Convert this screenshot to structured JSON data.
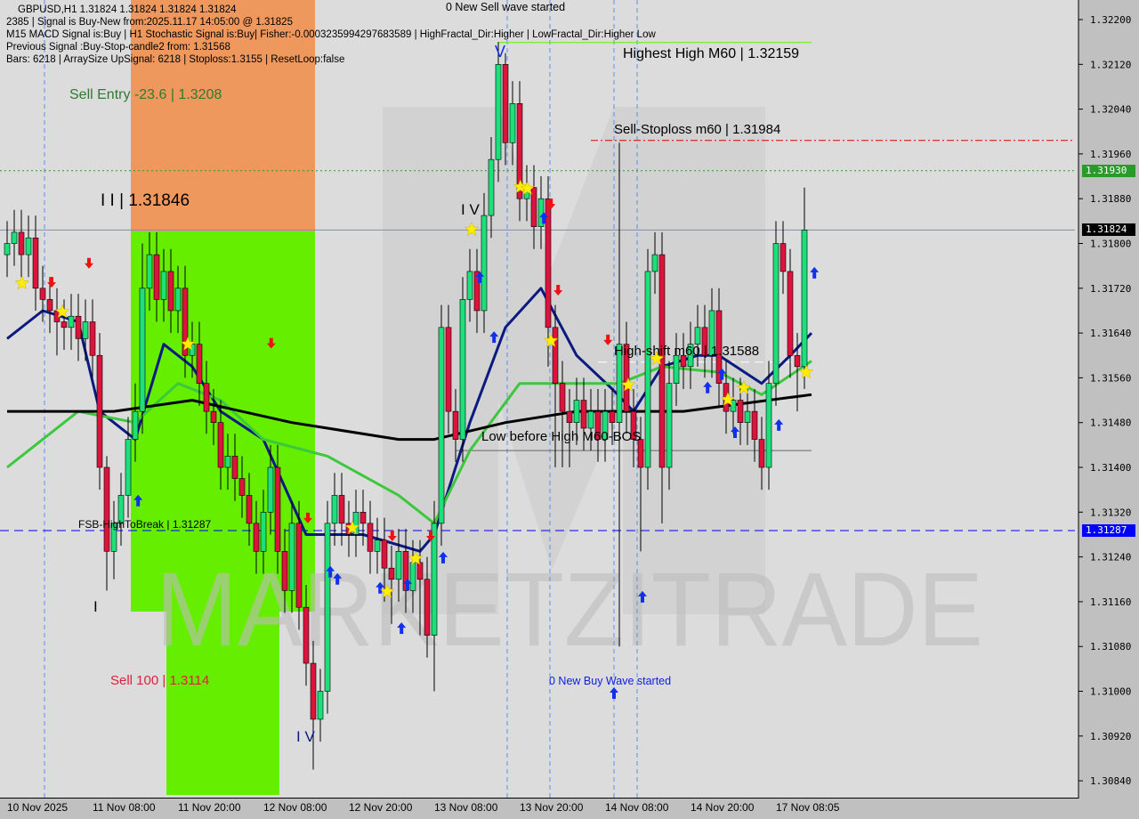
{
  "header": {
    "line1": "GBPUSD,H1  1.31824 1.31824 1.31824 1.31824",
    "line2": "2385 | Signal is Buy-New from:2025.11.17 14:05:00 @ 1.31825",
    "line3": "M15 MACD Signal is:Buy | H1 Stochastic Signal is:Buy| Fisher:-0.0003235994297683589 | HighFractal_Dir:Higher | LowFractal_Dir:Higher Low",
    "line4": "Previous Signal :Buy-Stop-candle2 from: 1.31568",
    "line5": "Bars: 6218 | ArraySize UpSignal: 6218 | Stoploss:1.3155 | ResetLoop:false"
  },
  "annotations": {
    "sell_entry": "Sell Entry -23.6 | 1.3208",
    "ii_level": "I I | 1.31846",
    "wave_iv_top": "I V",
    "wave_v": "V",
    "wave_iv_bottom": "I V",
    "wave_i": "I",
    "new_sell_wave": "0 New Sell wave started",
    "highest_high": "Highest High  M60 | 1.32159",
    "sell_stoploss": "Sell-Stoploss m60 | 1.31984",
    "high_shift": "High-shift m60 | 1.31588",
    "low_before_high": "Low before High  M60-BOS",
    "fsb_high": "FSB-HighToBreak | 1.31287",
    "sell_100": "Sell 100 | 1.3114",
    "new_buy_wave": "0 New Buy Wave started"
  },
  "watermark": "MARKETZITRADE",
  "price_tags": {
    "green_level": "1.31930",
    "current": "1.31824",
    "blue_level": "1.31287"
  },
  "colors": {
    "bull": "#1ee07a",
    "bear": "#dc143c",
    "ma_fast": "#0a1a80",
    "ma_mid": "#3cc83c",
    "ma_slow": "#000000",
    "sell_zone": "#f09050",
    "buy_zone": "#66ee00",
    "green_tag": "#2a9a2a",
    "blue_tag": "#0000ff",
    "current_tag": "#000000"
  },
  "chart_data": {
    "type": "candlestick",
    "symbol": "GBPUSD,H1",
    "ylim": [
      1.308,
      1.3224
    ],
    "y_ticks": [
      "1.32200",
      "1.32120",
      "1.32040",
      "1.31960",
      "1.31880",
      "1.31800",
      "1.31720",
      "1.31640",
      "1.31560",
      "1.31480",
      "1.31400",
      "1.31320",
      "1.31240",
      "1.31160",
      "1.31080",
      "1.31000",
      "1.30920",
      "1.30840"
    ],
    "x_ticks": [
      {
        "bar": 4,
        "label": "10 Nov 2025"
      },
      {
        "bar": 16,
        "label": "11 Nov 08:00"
      },
      {
        "bar": 28,
        "label": "11 Nov 20:00"
      },
      {
        "bar": 40,
        "label": "12 Nov 08:00"
      },
      {
        "bar": 52,
        "label": "12 Nov 20:00"
      },
      {
        "bar": 64,
        "label": "13 Nov 08:00"
      },
      {
        "bar": 76,
        "label": "13 Nov 20:00"
      },
      {
        "bar": 88,
        "label": "14 Nov 08:00"
      },
      {
        "bar": 100,
        "label": "14 Nov 20:00"
      },
      {
        "bar": 112,
        "label": "17 Nov 08:05"
      }
    ],
    "candles_ohlc": [
      [
        1.3178,
        1.3184,
        1.3174,
        1.318
      ],
      [
        1.318,
        1.3186,
        1.3176,
        1.3182
      ],
      [
        1.3182,
        1.3186,
        1.3174,
        1.3178
      ],
      [
        1.3178,
        1.3185,
        1.3174,
        1.3181
      ],
      [
        1.3181,
        1.3185,
        1.3168,
        1.3172
      ],
      [
        1.3172,
        1.3176,
        1.3166,
        1.317
      ],
      [
        1.317,
        1.3174,
        1.3164,
        1.3168
      ],
      [
        1.3168,
        1.3172,
        1.316,
        1.3166
      ],
      [
        1.3166,
        1.317,
        1.3161,
        1.3165
      ],
      [
        1.3165,
        1.3171,
        1.3161,
        1.3167
      ],
      [
        1.3167,
        1.3171,
        1.3159,
        1.3163
      ],
      [
        1.3163,
        1.317,
        1.3159,
        1.3166
      ],
      [
        1.3166,
        1.317,
        1.3156,
        1.316
      ],
      [
        1.316,
        1.3164,
        1.3136,
        1.314
      ],
      [
        1.314,
        1.3142,
        1.3118,
        1.3125
      ],
      [
        1.3125,
        1.3134,
        1.312,
        1.313
      ],
      [
        1.313,
        1.3139,
        1.3126,
        1.3135
      ],
      [
        1.3135,
        1.3149,
        1.3131,
        1.3145
      ],
      [
        1.3145,
        1.3155,
        1.3141,
        1.315
      ],
      [
        1.315,
        1.318,
        1.3146,
        1.3172
      ],
      [
        1.3172,
        1.3182,
        1.3168,
        1.3178
      ],
      [
        1.3178,
        1.3182,
        1.3166,
        1.317
      ],
      [
        1.317,
        1.3179,
        1.3166,
        1.3175
      ],
      [
        1.3175,
        1.3179,
        1.3164,
        1.3168
      ],
      [
        1.3168,
        1.3176,
        1.3164,
        1.3172
      ],
      [
        1.3172,
        1.3176,
        1.3156,
        1.316
      ],
      [
        1.316,
        1.3166,
        1.3156,
        1.3162
      ],
      [
        1.3162,
        1.3166,
        1.3151,
        1.3155
      ],
      [
        1.3155,
        1.3159,
        1.3146,
        1.315
      ],
      [
        1.315,
        1.3154,
        1.3144,
        1.3148
      ],
      [
        1.3148,
        1.3152,
        1.3136,
        1.314
      ],
      [
        1.314,
        1.3146,
        1.3136,
        1.3142
      ],
      [
        1.3142,
        1.3146,
        1.3134,
        1.3138
      ],
      [
        1.3138,
        1.3142,
        1.3131,
        1.3135
      ],
      [
        1.3135,
        1.3139,
        1.3126,
        1.313
      ],
      [
        1.313,
        1.3134,
        1.3121,
        1.3125
      ],
      [
        1.3125,
        1.3136,
        1.3121,
        1.3132
      ],
      [
        1.3132,
        1.3144,
        1.3128,
        1.314
      ],
      [
        1.314,
        1.3144,
        1.3121,
        1.3125
      ],
      [
        1.3125,
        1.3129,
        1.3114,
        1.3118
      ],
      [
        1.3118,
        1.3134,
        1.3114,
        1.313
      ],
      [
        1.313,
        1.3134,
        1.3111,
        1.3115
      ],
      [
        1.3115,
        1.3119,
        1.3101,
        1.3105
      ],
      [
        1.3105,
        1.3109,
        1.3086,
        1.3095
      ],
      [
        1.3095,
        1.3104,
        1.3091,
        1.31
      ],
      [
        1.31,
        1.3134,
        1.3096,
        1.313
      ],
      [
        1.313,
        1.3139,
        1.3126,
        1.3135
      ],
      [
        1.3135,
        1.3139,
        1.3126,
        1.313
      ],
      [
        1.313,
        1.3134,
        1.3124,
        1.3128
      ],
      [
        1.3128,
        1.3136,
        1.3124,
        1.3132
      ],
      [
        1.3132,
        1.3136,
        1.3126,
        1.313
      ],
      [
        1.313,
        1.3134,
        1.3121,
        1.3125
      ],
      [
        1.3125,
        1.3131,
        1.3121,
        1.3127
      ],
      [
        1.3127,
        1.3131,
        1.3116,
        1.3122
      ],
      [
        1.3122,
        1.3126,
        1.3112,
        1.312
      ],
      [
        1.312,
        1.3129,
        1.3116,
        1.3125
      ],
      [
        1.3125,
        1.3129,
        1.3114,
        1.3118
      ],
      [
        1.3118,
        1.3127,
        1.3114,
        1.3123
      ],
      [
        1.3123,
        1.3127,
        1.311,
        1.312
      ],
      [
        1.312,
        1.3124,
        1.3106,
        1.311
      ],
      [
        1.311,
        1.3134,
        1.31,
        1.313
      ],
      [
        1.313,
        1.3169,
        1.3126,
        1.3165
      ],
      [
        1.3165,
        1.3169,
        1.3146,
        1.315
      ],
      [
        1.315,
        1.3154,
        1.3141,
        1.3145
      ],
      [
        1.3145,
        1.3174,
        1.3141,
        1.317
      ],
      [
        1.317,
        1.3179,
        1.3166,
        1.3175
      ],
      [
        1.3175,
        1.3179,
        1.3164,
        1.3168
      ],
      [
        1.3168,
        1.3189,
        1.3164,
        1.3185
      ],
      [
        1.3185,
        1.3199,
        1.3181,
        1.3195
      ],
      [
        1.3195,
        1.3216,
        1.3191,
        1.3212
      ],
      [
        1.3212,
        1.3214,
        1.3194,
        1.3198
      ],
      [
        1.3198,
        1.3209,
        1.3194,
        1.3205
      ],
      [
        1.3205,
        1.3209,
        1.3184,
        1.3188
      ],
      [
        1.3188,
        1.3194,
        1.3184,
        1.319
      ],
      [
        1.319,
        1.3194,
        1.3179,
        1.3183
      ],
      [
        1.3183,
        1.3192,
        1.3179,
        1.3188
      ],
      [
        1.3188,
        1.3192,
        1.3158,
        1.3165
      ],
      [
        1.3165,
        1.3169,
        1.314,
        1.3155
      ],
      [
        1.3155,
        1.3159,
        1.314,
        1.315
      ],
      [
        1.315,
        1.3154,
        1.314,
        1.3148
      ],
      [
        1.3148,
        1.3156,
        1.3144,
        1.3152
      ],
      [
        1.3152,
        1.3156,
        1.3143,
        1.3147
      ],
      [
        1.3147,
        1.3154,
        1.3143,
        1.315
      ],
      [
        1.315,
        1.3154,
        1.3141,
        1.3145
      ],
      [
        1.3145,
        1.3154,
        1.3141,
        1.315
      ],
      [
        1.315,
        1.3154,
        1.3144,
        1.3148
      ],
      [
        1.3148,
        1.3198,
        1.3108,
        1.3162
      ],
      [
        1.3162,
        1.3166,
        1.3146,
        1.315
      ],
      [
        1.315,
        1.3154,
        1.314,
        1.3145
      ],
      [
        1.3145,
        1.3149,
        1.3125,
        1.314
      ],
      [
        1.314,
        1.3179,
        1.3136,
        1.3175
      ],
      [
        1.3175,
        1.3182,
        1.3171,
        1.3178
      ],
      [
        1.3178,
        1.3182,
        1.313,
        1.314
      ],
      [
        1.314,
        1.3159,
        1.3136,
        1.3155
      ],
      [
        1.3155,
        1.3164,
        1.3151,
        1.316
      ],
      [
        1.316,
        1.3164,
        1.3154,
        1.3158
      ],
      [
        1.3158,
        1.3166,
        1.3154,
        1.3162
      ],
      [
        1.3162,
        1.3169,
        1.3158,
        1.3165
      ],
      [
        1.3165,
        1.3169,
        1.3156,
        1.316
      ],
      [
        1.316,
        1.3172,
        1.3156,
        1.3168
      ],
      [
        1.3168,
        1.3172,
        1.3151,
        1.3155
      ],
      [
        1.3155,
        1.3159,
        1.3146,
        1.315
      ],
      [
        1.315,
        1.3156,
        1.3146,
        1.3152
      ],
      [
        1.3152,
        1.3156,
        1.3144,
        1.3148
      ],
      [
        1.3148,
        1.3154,
        1.3144,
        1.315
      ],
      [
        1.315,
        1.3154,
        1.3141,
        1.3145
      ],
      [
        1.3145,
        1.3149,
        1.3136,
        1.314
      ],
      [
        1.314,
        1.3159,
        1.3136,
        1.3155
      ],
      [
        1.3155,
        1.3184,
        1.3151,
        1.318
      ],
      [
        1.318,
        1.3184,
        1.3171,
        1.3175
      ],
      [
        1.3175,
        1.3179,
        1.3156,
        1.316
      ],
      [
        1.316,
        1.3164,
        1.315,
        1.3158
      ],
      [
        1.3158,
        1.319,
        1.3154,
        1.31824
      ]
    ],
    "moving_averages": [
      {
        "color_key": "ma_fast",
        "points": [
          [
            0,
            1.3163
          ],
          [
            5,
            1.3168
          ],
          [
            10,
            1.3166
          ],
          [
            13,
            1.315
          ],
          [
            18,
            1.3145
          ],
          [
            22,
            1.3162
          ],
          [
            26,
            1.3158
          ],
          [
            30,
            1.315
          ],
          [
            36,
            1.3145
          ],
          [
            42,
            1.3128
          ],
          [
            50,
            1.3128
          ],
          [
            58,
            1.3125
          ],
          [
            60,
            1.3128
          ],
          [
            65,
            1.3148
          ],
          [
            70,
            1.3165
          ],
          [
            75,
            1.3172
          ],
          [
            80,
            1.316
          ],
          [
            85,
            1.3154
          ],
          [
            88,
            1.315
          ],
          [
            92,
            1.3158
          ],
          [
            97,
            1.316
          ],
          [
            100,
            1.316
          ],
          [
            106,
            1.3155
          ],
          [
            110,
            1.316
          ],
          [
            113,
            1.3164
          ]
        ]
      },
      {
        "color_key": "ma_mid",
        "points": [
          [
            0,
            1.314
          ],
          [
            10,
            1.315
          ],
          [
            18,
            1.3148
          ],
          [
            24,
            1.3155
          ],
          [
            30,
            1.3152
          ],
          [
            36,
            1.3145
          ],
          [
            45,
            1.3142
          ],
          [
            55,
            1.3135
          ],
          [
            60,
            1.313
          ],
          [
            65,
            1.3143
          ],
          [
            72,
            1.3155
          ],
          [
            80,
            1.3155
          ],
          [
            86,
            1.3155
          ],
          [
            92,
            1.3158
          ],
          [
            100,
            1.3157
          ],
          [
            106,
            1.3153
          ],
          [
            113,
            1.3159
          ]
        ]
      },
      {
        "color_key": "ma_slow",
        "points": [
          [
            0,
            1.315
          ],
          [
            15,
            1.315
          ],
          [
            26,
            1.3152
          ],
          [
            40,
            1.3148
          ],
          [
            55,
            1.3145
          ],
          [
            60,
            1.3145
          ],
          [
            70,
            1.3148
          ],
          [
            80,
            1.315
          ],
          [
            95,
            1.315
          ],
          [
            113,
            1.3153
          ]
        ]
      }
    ],
    "levels": [
      {
        "name": "highest-high",
        "price": 1.32159,
        "from_bar": 70,
        "to_bar": 113,
        "color": "#66ee00",
        "style": "solid"
      },
      {
        "name": "sell-stoploss",
        "price": 1.31984,
        "from_bar": 83,
        "to_bar": 150,
        "color": "#dd0000",
        "style": "dashdot"
      },
      {
        "name": "green-level",
        "price": 1.3193,
        "from_bar": 0,
        "to_bar": 150,
        "color": "#2a9a2a",
        "style": "dotted"
      },
      {
        "name": "current-price",
        "price": 1.31824,
        "from_bar": 0,
        "to_bar": 150,
        "color": "#8090a0",
        "style": "solid"
      },
      {
        "name": "high-shift",
        "price": 1.31588,
        "from_bar": 84,
        "to_bar": 113,
        "color": "#ffffff",
        "style": "dashed"
      },
      {
        "name": "low-before-high",
        "price": 1.3143,
        "from_bar": 64,
        "to_bar": 113,
        "color": "#666666",
        "style": "solid"
      },
      {
        "name": "fsb-high",
        "price": 1.31287,
        "from_bar": 0,
        "to_bar": 150,
        "color": "#0000ee",
        "style": "dashed"
      }
    ],
    "down_arrows": [
      [
        6.25,
        1.31729
      ],
      [
        11.5,
        1.31763
      ],
      [
        37.1,
        1.3162
      ],
      [
        42.25,
        1.31308
      ],
      [
        54.1,
        1.31276
      ],
      [
        59.5,
        1.31276
      ],
      [
        76.4,
        1.31869
      ],
      [
        77.4,
        1.31715
      ],
      [
        84.4,
        1.31626
      ]
    ],
    "up_arrows": [
      [
        18.4,
        1.3134
      ],
      [
        45.4,
        1.31213
      ],
      [
        46.4,
        1.312
      ],
      [
        52.4,
        1.31184
      ],
      [
        55.4,
        1.31112
      ],
      [
        56.25,
        1.3119
      ],
      [
        61.25,
        1.31238
      ],
      [
        66.4,
        1.31739
      ],
      [
        68.4,
        1.31632
      ],
      [
        75.4,
        1.31845
      ],
      [
        85.25,
        1.30996
      ],
      [
        89.25,
        1.31168
      ],
      [
        98.4,
        1.31542
      ],
      [
        100.4,
        1.31566
      ],
      [
        102.25,
        1.31462
      ],
      [
        108.4,
        1.31475
      ],
      [
        113.4,
        1.31747
      ]
    ],
    "stars": [
      [
        2.1,
        1.31729
      ],
      [
        7.75,
        1.31678
      ],
      [
        25.4,
        1.3162
      ],
      [
        65.25,
        1.31825
      ],
      [
        72.1,
        1.31901
      ],
      [
        73.1,
        1.31898
      ],
      [
        76.4,
        1.31626
      ],
      [
        87.25,
        1.31547
      ],
      [
        91.25,
        1.31594
      ],
      [
        101.25,
        1.31521
      ],
      [
        103.5,
        1.31542
      ],
      [
        112.25,
        1.3157
      ],
      [
        53.4,
        1.31178
      ],
      [
        57.4,
        1.31237
      ],
      [
        48.5,
        1.31292
      ]
    ]
  }
}
